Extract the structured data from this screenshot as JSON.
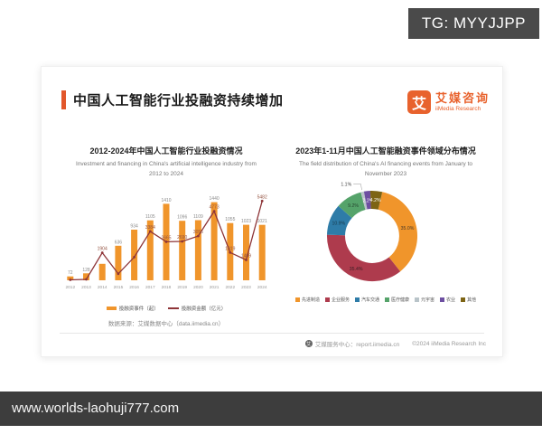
{
  "overlay": {
    "tg_badge": "TG: MYYJJPP",
    "bottom_url": "www.worlds-laohuji777.com"
  },
  "slide": {
    "title": "中国人工智能行业投融资持续增加",
    "accent_color": "#e2572b",
    "logo": {
      "mark": "艾",
      "name_zh": "艾媒咨询",
      "name_en": "iiMedia Research",
      "color": "#e8622d"
    },
    "source": "数据来源：艾媒数据中心（data.iimedia.cn）",
    "footer": {
      "service_icon": "iimedia-service-icon",
      "service": "艾媒服务中心：report.iimedia.cn",
      "copyright": "©2024  iiMedia Research Inc"
    }
  },
  "chart_data": [
    {
      "type": "bar",
      "subtype": "bar-line-combo",
      "title": "2012-2024年中国人工智能行业投融资情况",
      "subtitle": "Investment and financing in China's artificial intelligence industry from 2012 to 2024",
      "categories": [
        "2012",
        "2013",
        "2014",
        "2015",
        "2016",
        "2017",
        "2018",
        "2019",
        "2020",
        "2021",
        "2022",
        "2023",
        "2024"
      ],
      "series": [
        {
          "name": "投融资事件（起）",
          "render": "bar",
          "color": "#f0952b",
          "values": [
            72,
            128,
            304,
            636,
            934,
            1105,
            1410,
            1096,
            1109,
            1440,
            1055,
            1023,
            1021
          ],
          "labels": [
            "72",
            "128",
            "",
            "636",
            "934",
            "1105",
            "1410",
            "1096",
            "1109",
            "1440",
            "1055",
            "1023",
            "1021"
          ]
        },
        {
          "name": "投融资金额（亿元）",
          "render": "line",
          "color": "#8e3538",
          "values": [
            30,
            60,
            1904,
            450,
            1600,
            3384,
            2665,
            2690,
            3056,
            4773,
            1919,
            1409,
            5482
          ],
          "labels": [
            "",
            "",
            "1904",
            "",
            "",
            "3384",
            "2665",
            "2690",
            "3056",
            "4773",
            "1919",
            "1409",
            "5482"
          ]
        }
      ],
      "ylim_bar": [
        0,
        1600
      ],
      "ylim_line": [
        0,
        6000
      ],
      "grid": false,
      "legend_position": "bottom"
    },
    {
      "type": "pie",
      "donut": true,
      "title": "2023年1-11月中国人工智能融资事件领域分布情况",
      "subtitle": "The field distribution of China's AI financing events from January to November 2023",
      "start_offset_deg": 13,
      "segments": [
        {
          "label": "先进制造",
          "value": 35.0,
          "text": "35.0%",
          "color": "#f0952b",
          "label_fill": "#4a3a28",
          "label_pos": "inside"
        },
        {
          "label": "企业服务",
          "value": 35.4,
          "text": "35.4%",
          "color": "#ae3b4d",
          "label_fill": "#3c2026",
          "label_pos": "inside"
        },
        {
          "label": "汽车交通",
          "value": 10.9,
          "text": "10.9%",
          "color": "#2e7ca8",
          "label_fill": "#17384a",
          "label_pos": "inside"
        },
        {
          "label": "医疗健康",
          "value": 9.2,
          "text": "9.2%",
          "color": "#55a36a",
          "label_fill": "#24442d",
          "label_pos": "inside"
        },
        {
          "label": "元宇宙",
          "value": 1.1,
          "text": "1.1%",
          "color": "#b9c4c9",
          "label_fill": "#444444",
          "label_pos": "outside"
        },
        {
          "label": "农业",
          "value": 2.2,
          "text": "2.2%",
          "color": "#6d4fa1",
          "label_fill": "#ffffff",
          "label_pos": "inside"
        },
        {
          "label": "其他",
          "value": 4.2,
          "text": "4.2%",
          "color": "#7d6414",
          "label_fill": "#ffffff",
          "label_pos": "inside"
        }
      ],
      "legend_position": "bottom"
    }
  ]
}
